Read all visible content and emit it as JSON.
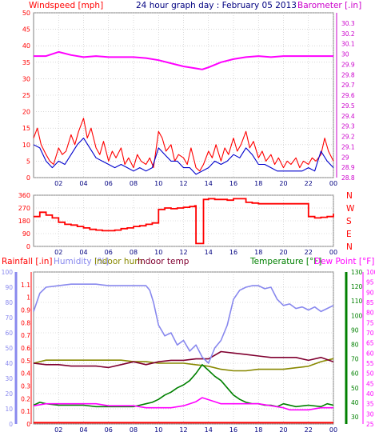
{
  "header": {
    "title": "24 hour graph day : February 05 2013",
    "left_label": "Windspeed [mph]",
    "right_label": "Barometer [.in]"
  },
  "colors": {
    "wind": "#ff0000",
    "wind_avg": "#0000cc",
    "baro": "#ff00ff",
    "dir": "#ff0000",
    "rain": "#ff0000",
    "humidity": "#8888ee",
    "indoor_hum": "#888800",
    "indoor_temp": "#800030",
    "temperature": "#008000",
    "dewpoint": "#ff00ff",
    "rain_tick": "#ff0000",
    "left_axis": "#ff0000",
    "right_axis": "#cc00cc",
    "grid": "#c0c0c0",
    "xaxis_text": "#000080"
  },
  "chart_data": [
    {
      "type": "line",
      "title": "24 hour graph day : February 05 2013",
      "xlabel": "",
      "ylabel": "Windspeed [mph]",
      "y2label": "Barometer [.in]",
      "x_ticks": [
        "02",
        "04",
        "06",
        "08",
        "10",
        "12",
        "14",
        "16",
        "18",
        "20",
        "22",
        "00"
      ],
      "xlim": [
        0,
        24
      ],
      "ylim": [
        0,
        50
      ],
      "y_ticks": [
        0,
        5,
        10,
        15,
        20,
        25,
        30,
        35,
        40,
        45,
        50
      ],
      "y2lim": [
        28.8,
        30.4
      ],
      "y2_ticks": [
        "28.8",
        "28.9",
        "29",
        "29.1",
        "29.2",
        "29.3",
        "29.4",
        "29.5",
        "29.6",
        "29.7",
        "29.8",
        "29.9",
        "30",
        "30.1",
        "30.2",
        "30.3"
      ],
      "grid": true,
      "series": [
        {
          "key": "gust",
          "axis": "left",
          "x": [
            0,
            0.3,
            0.6,
            1,
            1.3,
            1.6,
            2,
            2.3,
            2.6,
            3,
            3.3,
            3.6,
            4,
            4.3,
            4.6,
            5,
            5.3,
            5.6,
            6,
            6.3,
            6.6,
            7,
            7.3,
            7.6,
            8,
            8.3,
            8.6,
            9,
            9.3,
            9.6,
            10,
            10.3,
            10.6,
            11,
            11.3,
            11.6,
            12,
            12.3,
            12.6,
            13,
            13.3,
            13.6,
            14,
            14.3,
            14.6,
            15,
            15.3,
            15.6,
            16,
            16.3,
            16.6,
            17,
            17.3,
            17.6,
            18,
            18.3,
            18.6,
            19,
            19.3,
            19.6,
            20,
            20.3,
            20.6,
            21,
            21.3,
            21.6,
            22,
            22.3,
            22.6,
            23,
            23.3,
            23.6,
            24
          ],
          "values": [
            12,
            15,
            10,
            7,
            5,
            4,
            9,
            7,
            8,
            13,
            10,
            14,
            18,
            12,
            15,
            9,
            7,
            11,
            5,
            8,
            6,
            9,
            4,
            6,
            3,
            7,
            5,
            4,
            6,
            3,
            14,
            12,
            8,
            10,
            5,
            7,
            6,
            4,
            9,
            3,
            2,
            4,
            8,
            6,
            10,
            5,
            9,
            7,
            12,
            8,
            10,
            14,
            9,
            11,
            6,
            8,
            5,
            7,
            4,
            6,
            3,
            5,
            4,
            6,
            3,
            5,
            4,
            6,
            5,
            7,
            12,
            8,
            5
          ]
        },
        {
          "key": "average",
          "axis": "left",
          "x": [
            0,
            0.5,
            1,
            1.5,
            2,
            2.5,
            3,
            3.5,
            4,
            4.5,
            5,
            5.5,
            6,
            6.5,
            7,
            7.5,
            8,
            8.5,
            9,
            9.5,
            10,
            10.5,
            11,
            11.5,
            12,
            12.5,
            13,
            13.5,
            14,
            14.5,
            15,
            15.5,
            16,
            16.5,
            17,
            17.5,
            18,
            18.5,
            19,
            19.5,
            20,
            20.5,
            21,
            21.5,
            22,
            22.5,
            23,
            23.5,
            24
          ],
          "values": [
            10,
            9,
            5,
            3,
            5,
            4,
            7,
            10,
            12,
            9,
            6,
            5,
            4,
            3,
            4,
            3,
            2,
            3,
            2,
            3,
            9,
            7,
            5,
            5,
            3,
            3,
            1,
            2,
            3,
            5,
            4,
            5,
            7,
            6,
            9,
            7,
            4,
            4,
            3,
            2,
            2,
            2,
            2,
            2,
            3,
            2,
            8,
            5,
            3
          ]
        },
        {
          "key": "barometer",
          "axis": "right",
          "x": [
            0,
            1,
            2,
            3,
            4,
            5,
            6,
            7,
            8,
            9,
            10,
            11,
            12,
            13,
            13.5,
            14,
            15,
            16,
            17,
            18,
            19,
            20,
            21,
            22,
            23,
            24
          ],
          "values": [
            29.98,
            29.98,
            30.02,
            29.99,
            29.97,
            29.98,
            29.97,
            29.97,
            29.97,
            29.96,
            29.94,
            29.91,
            29.88,
            29.86,
            29.85,
            29.87,
            29.92,
            29.95,
            29.97,
            29.98,
            29.97,
            29.98,
            29.98,
            29.98,
            29.98,
            29.98
          ]
        }
      ]
    },
    {
      "type": "line",
      "title": "",
      "xlabel": "",
      "ylabel": "",
      "x_ticks": [
        "02",
        "04",
        "06",
        "08",
        "10",
        "12",
        "14",
        "16",
        "18",
        "20",
        "22",
        "00"
      ],
      "xlim": [
        0,
        24
      ],
      "ylim": [
        0,
        360
      ],
      "y_ticks": [
        0,
        90,
        180,
        270,
        360
      ],
      "right_labels": [
        "N",
        "W",
        "S",
        "E",
        "N"
      ],
      "grid": true,
      "series": [
        {
          "key": "direction",
          "x": [
            0,
            0.5,
            1,
            1.5,
            2,
            2.5,
            3,
            3.5,
            4,
            4.5,
            5,
            5.5,
            6,
            6.5,
            7,
            7.5,
            8,
            8.5,
            9,
            9.5,
            10,
            10.5,
            11,
            11.5,
            12,
            12.5,
            12.9,
            13,
            13.5,
            13.6,
            14,
            14.5,
            15,
            15.5,
            16,
            16.5,
            17,
            17.5,
            18,
            18.5,
            19,
            19.5,
            20,
            20.5,
            21,
            21.5,
            22,
            22.5,
            23,
            23.5,
            24
          ],
          "values": [
            210,
            240,
            220,
            200,
            170,
            155,
            150,
            140,
            130,
            120,
            115,
            110,
            110,
            115,
            125,
            130,
            140,
            145,
            155,
            165,
            260,
            270,
            265,
            270,
            275,
            280,
            285,
            20,
            20,
            330,
            335,
            330,
            330,
            325,
            335,
            335,
            310,
            305,
            300,
            300,
            300,
            300,
            300,
            300,
            300,
            300,
            210,
            200,
            205,
            210,
            230
          ]
        }
      ]
    },
    {
      "type": "line",
      "title": "",
      "xlabel": "",
      "ylabel": "Rainfall [.in]",
      "legend": [
        "Rainfall [.in]",
        "Humidity [%]",
        "Indoor hum",
        "Indoor temp",
        "Temperature [°F]",
        "Dew Point [°F]"
      ],
      "x_ticks": [
        "02",
        "04",
        "06",
        "08",
        "10",
        "12",
        "14",
        "16",
        "18",
        "20",
        "22",
        "00"
      ],
      "xlim": [
        0,
        24
      ],
      "rain_lim": [
        0,
        1.2
      ],
      "rain_ticks": [
        "0",
        "0.1",
        "0.2",
        "0.3",
        "0.4",
        "0.5",
        "0.6",
        "0.7",
        "0.8",
        "0.9",
        "1",
        "1.1"
      ],
      "hum_lim": [
        0,
        100
      ],
      "hum_ticks": [
        0,
        10,
        20,
        30,
        40,
        50,
        60,
        70,
        80,
        90,
        100
      ],
      "temp_lim": [
        25,
        130
      ],
      "temp_ticks": [
        30,
        40,
        50,
        60,
        70,
        80,
        90,
        100,
        110,
        120,
        130
      ],
      "dew_lim": [
        25,
        100
      ],
      "dew_ticks": [
        25,
        30,
        35,
        40,
        45,
        50,
        55,
        60,
        65,
        70,
        75,
        80,
        85,
        90,
        95,
        100
      ],
      "grid": true,
      "series": [
        {
          "key": "rainfall",
          "axis": "rain",
          "x": [
            0,
            24
          ],
          "values": [
            0.01,
            0.01
          ]
        },
        {
          "key": "humidity",
          "axis": "hum",
          "x": [
            0,
            0.5,
            1,
            2,
            3,
            4,
            5,
            6,
            7,
            8,
            9,
            9.3,
            9.6,
            10,
            10.5,
            11,
            11.5,
            12,
            12.5,
            13,
            13.5,
            14,
            14.5,
            15,
            15.5,
            16,
            16.5,
            17,
            17.5,
            18,
            18.5,
            19,
            19.5,
            20,
            20.5,
            21,
            21.5,
            22,
            22.5,
            23,
            23.5,
            24
          ],
          "values": [
            74,
            86,
            90,
            91,
            92,
            92,
            92,
            91,
            91,
            91,
            91,
            88,
            80,
            65,
            58,
            60,
            52,
            55,
            48,
            52,
            44,
            40,
            50,
            55,
            65,
            82,
            88,
            90,
            91,
            91,
            89,
            90,
            82,
            78,
            79,
            76,
            77,
            75,
            77,
            74,
            76,
            78
          ]
        },
        {
          "key": "indoor_hum",
          "axis": "hum",
          "x": [
            0,
            1,
            2,
            3,
            4,
            5,
            6,
            7,
            8,
            9,
            10,
            11,
            12,
            13,
            14,
            15,
            16,
            17,
            18,
            19,
            20,
            21,
            22,
            23,
            24
          ],
          "values": [
            40,
            42,
            42,
            42,
            42,
            42,
            42,
            42,
            41,
            41,
            40,
            40,
            40,
            39,
            38,
            36,
            35,
            35,
            36,
            36,
            36,
            37,
            38,
            41,
            43
          ]
        },
        {
          "key": "indoor_temp",
          "axis": "temp",
          "x": [
            0,
            1,
            2,
            3,
            4,
            5,
            6,
            7,
            8,
            9,
            10,
            11,
            12,
            13,
            14,
            15,
            16,
            17,
            18,
            19,
            20,
            21,
            22,
            23,
            24
          ],
          "values": [
            67,
            66,
            66,
            65,
            65,
            65,
            64,
            66,
            68,
            66,
            68,
            69,
            69,
            70,
            70,
            75,
            74,
            73,
            72,
            71,
            71,
            71,
            69,
            71,
            68
          ]
        },
        {
          "key": "temperature",
          "axis": "temp",
          "x": [
            0,
            0.5,
            1,
            2,
            3,
            4,
            5,
            6,
            7,
            8,
            8.5,
            9,
            9.5,
            10,
            10.5,
            11,
            11.5,
            12,
            12.5,
            13,
            13.5,
            14,
            14.5,
            15,
            15.5,
            16,
            16.5,
            17,
            17.5,
            18,
            18.5,
            19,
            19.5,
            20,
            21,
            22,
            23,
            23.5,
            24
          ],
          "values": [
            38,
            40,
            39,
            38,
            38,
            38,
            37,
            37,
            37,
            37,
            38,
            39,
            40,
            42,
            45,
            47,
            50,
            52,
            55,
            60,
            66,
            62,
            58,
            55,
            50,
            45,
            42,
            40,
            39,
            39,
            38,
            38,
            37,
            39,
            37,
            38,
            37,
            39,
            38
          ]
        },
        {
          "key": "dewpoint",
          "axis": "dew",
          "x": [
            0,
            1,
            2,
            3,
            4,
            5,
            6,
            7,
            8,
            9,
            10,
            11,
            12,
            12.5,
            13,
            13.5,
            14,
            14.5,
            15,
            16,
            17,
            18,
            19,
            20,
            20.5,
            21,
            22,
            23,
            24
          ],
          "values": [
            34,
            35,
            35,
            35,
            35,
            35,
            34,
            34,
            34,
            33,
            33,
            33,
            34,
            35,
            36,
            38,
            37,
            36,
            35,
            35,
            35,
            35,
            34,
            33,
            32,
            32,
            32,
            33,
            33
          ]
        }
      ]
    }
  ]
}
